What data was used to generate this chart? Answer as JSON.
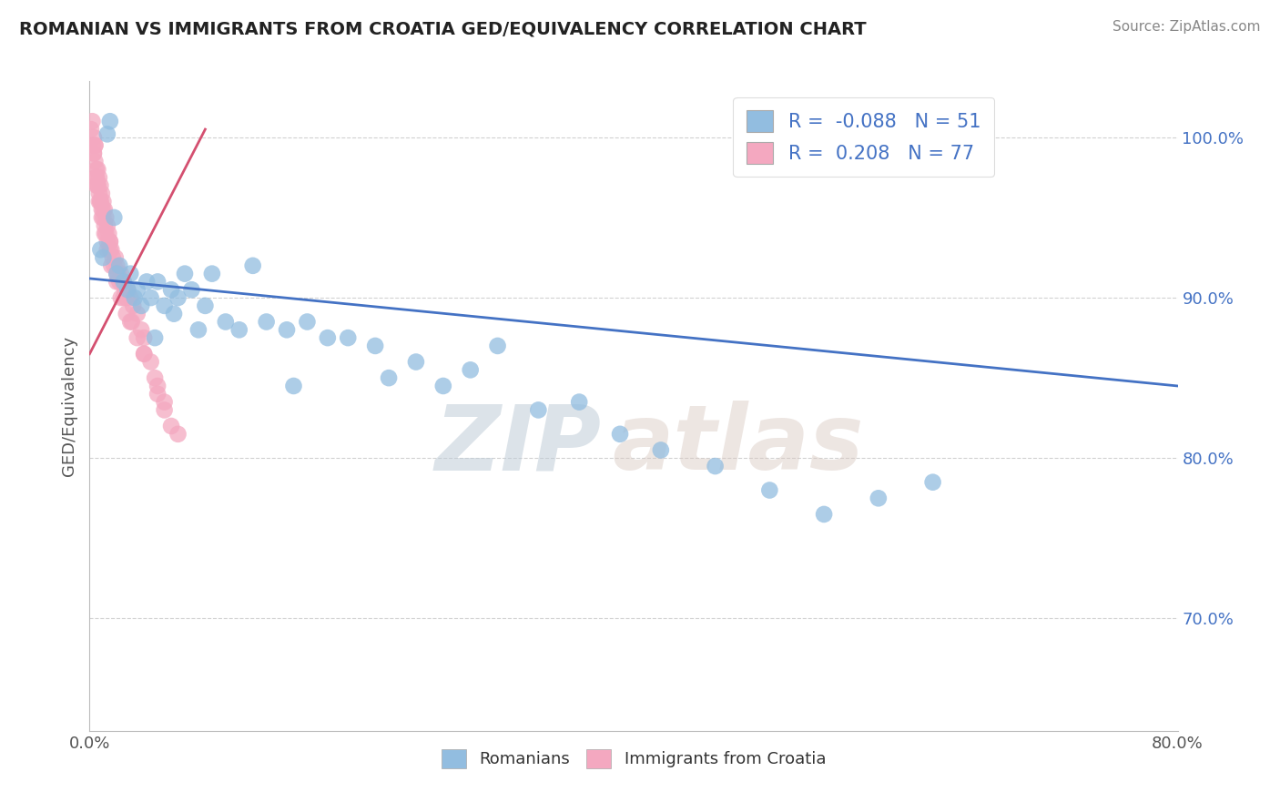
{
  "title": "ROMANIAN VS IMMIGRANTS FROM CROATIA GED/EQUIVALENCY CORRELATION CHART",
  "source": "Source: ZipAtlas.com",
  "ylabel": "GED/Equivalency",
  "xlim": [
    0.0,
    80.0
  ],
  "ylim": [
    63.0,
    103.5
  ],
  "yticks": [
    70.0,
    80.0,
    90.0,
    100.0
  ],
  "ytick_labels": [
    "70.0%",
    "80.0%",
    "90.0%",
    "100.0%"
  ],
  "blue_R": -0.088,
  "blue_N": 51,
  "pink_R": 0.208,
  "pink_N": 77,
  "blue_color": "#92bde0",
  "pink_color": "#f4a8c0",
  "blue_line_color": "#4472c4",
  "pink_line_color": "#d45070",
  "legend_blue_label": "Romanians",
  "legend_pink_label": "Immigrants from Croatia",
  "watermark_zip": "ZIP",
  "watermark_atlas": "atlas",
  "blue_trend": [
    0.0,
    80.0,
    91.2,
    84.5
  ],
  "pink_trend": [
    0.0,
    8.5,
    86.5,
    100.5
  ],
  "blue_scatter_x": [
    0.8,
    1.0,
    1.3,
    1.5,
    1.8,
    2.0,
    2.2,
    2.5,
    2.8,
    3.0,
    3.3,
    3.8,
    4.2,
    4.5,
    5.0,
    5.5,
    6.0,
    6.5,
    7.0,
    7.5,
    8.5,
    9.0,
    10.0,
    11.0,
    12.0,
    13.0,
    14.5,
    16.0,
    17.5,
    19.0,
    21.0,
    22.0,
    24.0,
    26.0,
    28.0,
    30.0,
    33.0,
    36.0,
    39.0,
    42.0,
    46.0,
    50.0,
    54.0,
    58.0,
    62.0,
    3.5,
    4.8,
    6.2,
    8.0,
    15.0,
    65.0
  ],
  "blue_scatter_y": [
    93.0,
    92.5,
    100.2,
    101.0,
    95.0,
    91.5,
    92.0,
    91.0,
    90.5,
    91.5,
    90.0,
    89.5,
    91.0,
    90.0,
    91.0,
    89.5,
    90.5,
    90.0,
    91.5,
    90.5,
    89.5,
    91.5,
    88.5,
    88.0,
    92.0,
    88.5,
    88.0,
    88.5,
    87.5,
    87.5,
    87.0,
    85.0,
    86.0,
    84.5,
    85.5,
    87.0,
    83.0,
    83.5,
    81.5,
    80.5,
    79.5,
    78.0,
    76.5,
    77.5,
    78.5,
    90.5,
    87.5,
    89.0,
    88.0,
    84.5,
    100.5
  ],
  "pink_scatter_x": [
    0.1,
    0.2,
    0.2,
    0.3,
    0.3,
    0.4,
    0.4,
    0.5,
    0.5,
    0.6,
    0.6,
    0.7,
    0.7,
    0.8,
    0.8,
    0.9,
    0.9,
    1.0,
    1.0,
    1.1,
    1.1,
    1.2,
    1.2,
    1.3,
    1.3,
    1.4,
    1.5,
    1.5,
    1.6,
    1.7,
    1.8,
    1.9,
    2.0,
    2.1,
    2.2,
    2.3,
    2.4,
    2.5,
    2.6,
    2.7,
    2.8,
    3.0,
    3.2,
    3.5,
    3.8,
    4.0,
    4.5,
    5.0,
    5.5,
    6.0,
    0.3,
    0.5,
    0.7,
    0.9,
    1.1,
    1.3,
    1.6,
    2.0,
    2.3,
    2.7,
    3.1,
    3.5,
    4.0,
    4.8,
    5.5,
    0.4,
    0.6,
    1.0,
    1.5,
    2.0,
    2.5,
    3.0,
    4.0,
    5.0,
    6.5,
    0.5,
    0.8
  ],
  "pink_scatter_y": [
    100.5,
    99.5,
    101.0,
    100.0,
    99.0,
    99.5,
    98.5,
    98.0,
    97.5,
    98.0,
    97.0,
    97.5,
    96.5,
    97.0,
    96.0,
    96.5,
    95.5,
    96.0,
    95.0,
    95.5,
    94.5,
    95.0,
    94.0,
    94.5,
    93.5,
    94.0,
    93.5,
    93.0,
    93.0,
    92.5,
    92.0,
    92.5,
    92.0,
    91.5,
    91.0,
    91.5,
    91.0,
    91.0,
    90.5,
    90.0,
    90.5,
    90.0,
    89.5,
    89.0,
    88.0,
    87.5,
    86.0,
    84.5,
    83.0,
    82.0,
    99.0,
    97.5,
    96.0,
    95.0,
    94.0,
    93.0,
    92.0,
    91.0,
    90.0,
    89.0,
    88.5,
    87.5,
    86.5,
    85.0,
    83.5,
    99.5,
    97.0,
    95.5,
    93.5,
    91.5,
    90.0,
    88.5,
    86.5,
    84.0,
    81.5,
    97.0,
    96.0
  ]
}
